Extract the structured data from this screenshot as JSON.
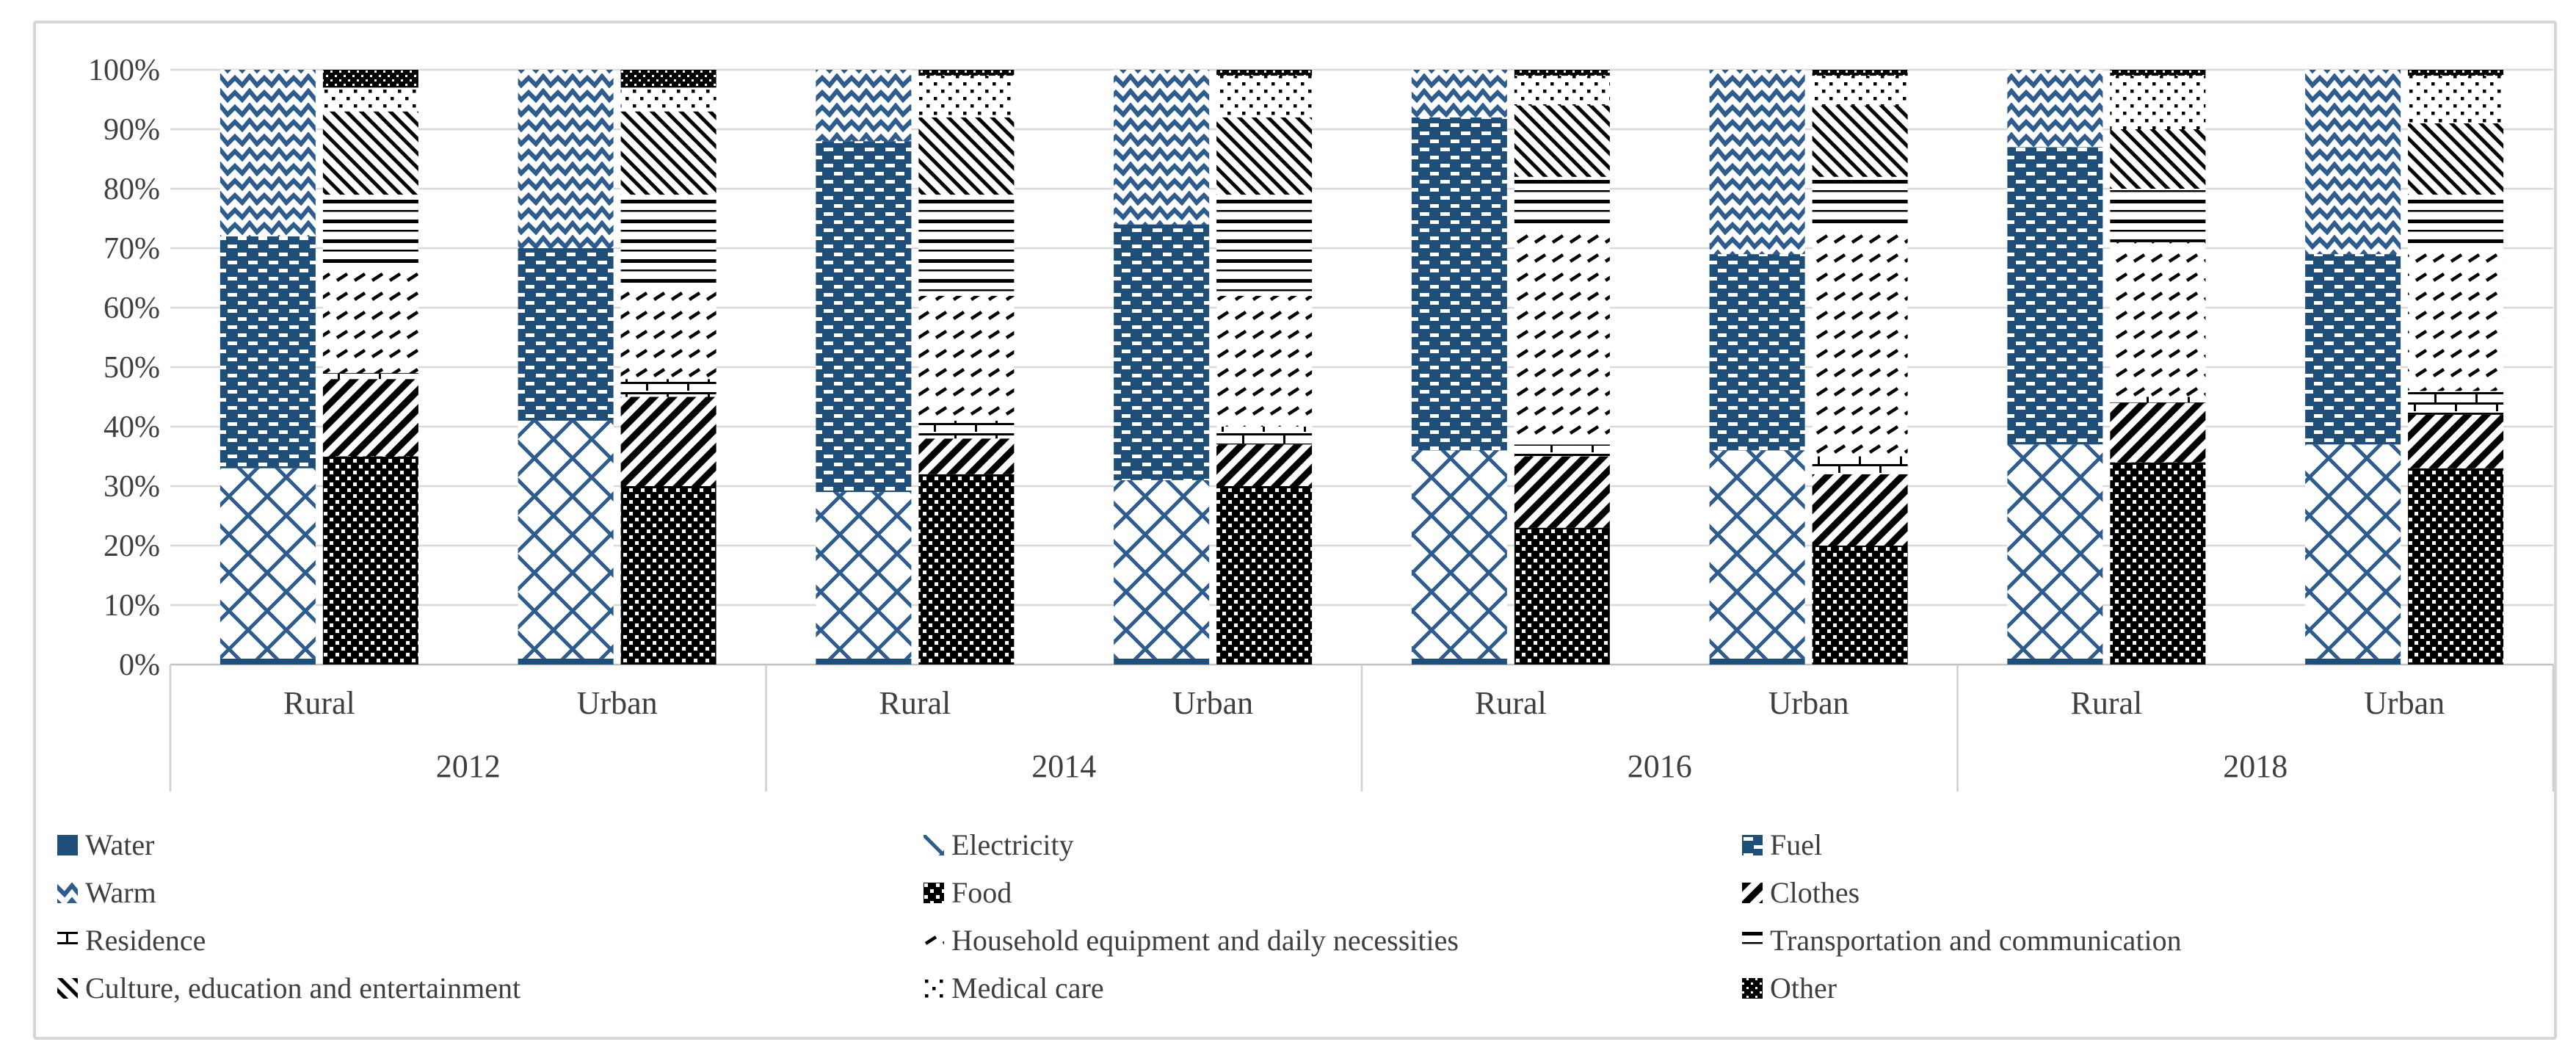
{
  "chart_data": {
    "type": "bar",
    "stacked": true,
    "unit": "%",
    "title": "",
    "ylim": [
      0,
      100
    ],
    "grid": true,
    "y_axis": {
      "ticks": [
        {
          "label": "100%",
          "value": 100
        },
        {
          "label": "90%",
          "value": 90
        },
        {
          "label": "80%",
          "value": 80
        },
        {
          "label": "70%",
          "value": 70
        },
        {
          "label": "60%",
          "value": 60
        },
        {
          "label": "50%",
          "value": 50
        },
        {
          "label": "40%",
          "value": 40
        },
        {
          "label": "30%",
          "value": 30
        },
        {
          "label": "20%",
          "value": 20
        },
        {
          "label": "10%",
          "value": 10
        },
        {
          "label": "0%",
          "value": 0
        }
      ]
    },
    "x_axis": {
      "year_labels": [
        "2012",
        "2014",
        "2016",
        "2018"
      ],
      "area_labels": [
        "Rural",
        "Urban"
      ]
    },
    "categories": [
      {
        "year": "2012",
        "area": "Rural"
      },
      {
        "year": "2012",
        "area": "Urban"
      },
      {
        "year": "2014",
        "area": "Rural"
      },
      {
        "year": "2014",
        "area": "Urban"
      },
      {
        "year": "2016",
        "area": "Rural"
      },
      {
        "year": "2016",
        "area": "Urban"
      },
      {
        "year": "2018",
        "area": "Rural"
      },
      {
        "year": "2018",
        "area": "Urban"
      }
    ],
    "series": [
      {
        "name": "Water",
        "stack": "energy",
        "pattern": "water",
        "values": [
          1,
          1,
          1,
          1,
          1,
          1,
          1,
          1
        ]
      },
      {
        "name": "Electricity",
        "stack": "energy",
        "pattern": "electricity",
        "values": [
          32,
          40,
          28,
          30,
          35,
          35,
          36,
          36
        ]
      },
      {
        "name": "Fuel",
        "stack": "energy",
        "pattern": "fuel",
        "values": [
          39,
          29,
          59,
          43,
          56,
          33,
          50,
          32
        ]
      },
      {
        "name": "Warm",
        "stack": "energy",
        "pattern": "warm",
        "values": [
          28,
          30,
          12,
          26,
          8,
          31,
          13,
          31
        ]
      },
      {
        "name": "Food",
        "stack": "consumption",
        "pattern": "food",
        "values": [
          35,
          30,
          32,
          30,
          23,
          20,
          34,
          33
        ]
      },
      {
        "name": "Clothes",
        "stack": "consumption",
        "pattern": "clothes",
        "values": [
          13,
          15,
          6,
          7,
          12,
          12,
          10,
          9
        ]
      },
      {
        "name": "Residence",
        "stack": "consumption",
        "pattern": "residence",
        "values": [
          1,
          3,
          3,
          3,
          2,
          3,
          1,
          4
        ]
      },
      {
        "name": "Household equipment and daily necessities",
        "stack": "consumption",
        "pattern": "household",
        "values": [
          18,
          16,
          21,
          22,
          37,
          39,
          26,
          24
        ]
      },
      {
        "name": "Transportation and communication",
        "stack": "consumption",
        "pattern": "transport",
        "values": [
          12,
          15,
          17,
          17,
          8,
          8,
          9,
          9
        ]
      },
      {
        "name": "Culture, education and entertainment",
        "stack": "consumption",
        "pattern": "culture",
        "values": [
          14,
          14,
          13,
          13,
          12,
          12,
          10,
          12
        ]
      },
      {
        "name": "Medical care",
        "stack": "consumption",
        "pattern": "medical",
        "values": [
          4,
          4,
          7,
          7,
          5,
          5,
          9,
          8
        ]
      },
      {
        "name": "Other",
        "stack": "consumption",
        "pattern": "other",
        "values": [
          3,
          3,
          1,
          1,
          1,
          1,
          1,
          1
        ]
      }
    ],
    "legend": {
      "columns": 3,
      "rows": 4,
      "position": "bottom"
    },
    "colors": {
      "navy": "#1f4e79",
      "pattern_blue": "#2e5c8e",
      "mono": "#000000",
      "axis_text": "#3f3f3f",
      "gridline": "#d9d9d9",
      "baseline": "#bfbfbf",
      "separator": "#cfcfcf",
      "figure_border": "#d6d6d6",
      "background": "#ffffff"
    }
  }
}
